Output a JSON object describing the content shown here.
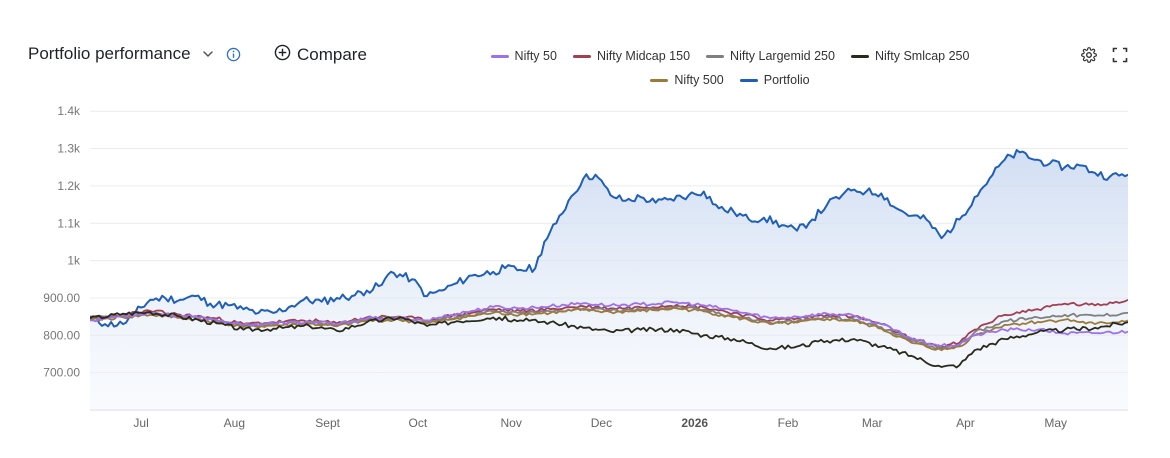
{
  "header": {
    "title": "Portfolio performance",
    "compare_label": "Compare"
  },
  "colors": {
    "nifty50": "#9b72ec",
    "midcap150": "#a04050",
    "largemid250": "#7f7f7f",
    "smlcap250": "#2a2a1a",
    "nifty500": "#9c7a3c",
    "portfolio": "#1f5fb8",
    "grid": "#ececec"
  },
  "chart_data": {
    "type": "line",
    "title": "Portfolio performance",
    "y_ticks": [
      "1.4k",
      "1.3k",
      "1.2k",
      "1.1k",
      "1k",
      "900.00",
      "800.00",
      "700.00"
    ],
    "y_tick_values": [
      1400,
      1300,
      1200,
      1100,
      1000,
      900,
      800,
      700
    ],
    "ylim": [
      600,
      1430
    ],
    "x_labels": [
      "Jul",
      "Aug",
      "Sept",
      "Oct",
      "Nov",
      "Dec",
      "2026",
      "Feb",
      "Mar",
      "Apr",
      "May"
    ],
    "x_label_bold": [
      false,
      false,
      false,
      false,
      false,
      false,
      true,
      false,
      false,
      false,
      false
    ],
    "x_range": [
      "2025-06-20",
      "2026-05-31"
    ],
    "x_label_dates": [
      "2025-07-01",
      "2025-08-01",
      "2025-09-01",
      "2025-10-01",
      "2025-11-01",
      "2025-12-01",
      "2026-01-01",
      "2026-02-01",
      "2026-03-01",
      "2026-04-01",
      "2026-05-01"
    ],
    "legend_rows": [
      [
        "Nifty 50",
        "Nifty Midcap 150",
        "Nifty Largemid 250",
        "Nifty Smlcap 250"
      ],
      [
        "Nifty 500",
        "Portfolio"
      ]
    ],
    "series": [
      {
        "name": "Portfolio",
        "key": "portfolio",
        "area": true,
        "points": [
          [
            "2025-06-20",
            850
          ],
          [
            "2025-06-25",
            830
          ],
          [
            "2025-07-01",
            830
          ],
          [
            "2025-07-05",
            860
          ],
          [
            "2025-07-10",
            895
          ],
          [
            "2025-07-15",
            900
          ],
          [
            "2025-07-20",
            895
          ],
          [
            "2025-07-25",
            905
          ],
          [
            "2025-07-30",
            885
          ],
          [
            "2025-08-05",
            880
          ],
          [
            "2025-08-10",
            870
          ],
          [
            "2025-08-15",
            860
          ],
          [
            "2025-08-20",
            860
          ],
          [
            "2025-08-25",
            875
          ],
          [
            "2025-08-30",
            895
          ],
          [
            "2025-09-05",
            890
          ],
          [
            "2025-09-10",
            900
          ],
          [
            "2025-09-15",
            905
          ],
          [
            "2025-09-20",
            920
          ],
          [
            "2025-09-25",
            935
          ],
          [
            "2025-09-28",
            970
          ],
          [
            "2025-10-05",
            950
          ],
          [
            "2025-10-10",
            905
          ],
          [
            "2025-10-15",
            920
          ],
          [
            "2025-10-20",
            940
          ],
          [
            "2025-10-25",
            960
          ],
          [
            "2025-11-01",
            970
          ],
          [
            "2025-11-05",
            980
          ],
          [
            "2025-11-10",
            975
          ],
          [
            "2025-11-15",
            980
          ],
          [
            "2025-11-18",
            1050
          ],
          [
            "2025-11-22",
            1100
          ],
          [
            "2025-11-26",
            1160
          ],
          [
            "2025-12-01",
            1220
          ],
          [
            "2025-12-05",
            1230
          ],
          [
            "2025-12-10",
            1175
          ],
          [
            "2025-12-15",
            1160
          ],
          [
            "2025-12-20",
            1170
          ],
          [
            "2025-12-25",
            1155
          ],
          [
            "2025-12-30",
            1165
          ],
          [
            "2026-01-05",
            1175
          ],
          [
            "2026-01-10",
            1185
          ],
          [
            "2026-01-15",
            1140
          ],
          [
            "2026-01-20",
            1130
          ],
          [
            "2026-01-25",
            1110
          ],
          [
            "2026-01-30",
            1115
          ],
          [
            "2026-02-05",
            1095
          ],
          [
            "2026-02-10",
            1080
          ],
          [
            "2026-02-15",
            1110
          ],
          [
            "2026-02-20",
            1150
          ],
          [
            "2026-02-25",
            1175
          ],
          [
            "2026-03-01",
            1190
          ],
          [
            "2026-03-05",
            1185
          ],
          [
            "2026-03-10",
            1180
          ],
          [
            "2026-03-15",
            1140
          ],
          [
            "2026-03-20",
            1120
          ],
          [
            "2026-03-25",
            1110
          ],
          [
            "2026-03-30",
            1060
          ],
          [
            "2026-04-05",
            1110
          ],
          [
            "2026-04-10",
            1170
          ],
          [
            "2026-04-15",
            1220
          ],
          [
            "2026-04-20",
            1270
          ],
          [
            "2026-04-25",
            1290
          ],
          [
            "2026-04-30",
            1270
          ],
          [
            "2026-05-05",
            1260
          ],
          [
            "2026-05-10",
            1250
          ],
          [
            "2026-05-15",
            1255
          ],
          [
            "2026-05-20",
            1235
          ],
          [
            "2026-05-25",
            1225
          ],
          [
            "2026-05-31",
            1230
          ]
        ]
      },
      {
        "name": "Nifty Midcap 150",
        "key": "midcap150",
        "points": [
          [
            "2025-06-20",
            845
          ],
          [
            "2025-07-01",
            855
          ],
          [
            "2025-07-10",
            865
          ],
          [
            "2025-07-20",
            855
          ],
          [
            "2025-08-01",
            845
          ],
          [
            "2025-08-10",
            830
          ],
          [
            "2025-08-20",
            835
          ],
          [
            "2025-09-01",
            840
          ],
          [
            "2025-09-10",
            832
          ],
          [
            "2025-09-20",
            848
          ],
          [
            "2025-10-01",
            850
          ],
          [
            "2025-10-10",
            840
          ],
          [
            "2025-10-20",
            855
          ],
          [
            "2025-11-01",
            870
          ],
          [
            "2025-11-10",
            865
          ],
          [
            "2025-11-20",
            870
          ],
          [
            "2025-12-01",
            878
          ],
          [
            "2025-12-10",
            872
          ],
          [
            "2025-12-20",
            875
          ],
          [
            "2026-01-01",
            882
          ],
          [
            "2026-01-10",
            875
          ],
          [
            "2026-01-20",
            860
          ],
          [
            "2026-02-01",
            840
          ],
          [
            "2026-02-10",
            845
          ],
          [
            "2026-02-20",
            855
          ],
          [
            "2026-03-01",
            850
          ],
          [
            "2026-03-10",
            830
          ],
          [
            "2026-03-20",
            790
          ],
          [
            "2026-03-30",
            770
          ],
          [
            "2026-04-05",
            780
          ],
          [
            "2026-04-10",
            815
          ],
          [
            "2026-04-20",
            855
          ],
          [
            "2026-05-01",
            870
          ],
          [
            "2026-05-10",
            885
          ],
          [
            "2026-05-20",
            880
          ],
          [
            "2026-05-31",
            895
          ]
        ]
      },
      {
        "name": "Nifty Largemid 250",
        "key": "largemid250",
        "points": [
          [
            "2025-06-20",
            842
          ],
          [
            "2025-07-01",
            850
          ],
          [
            "2025-07-10",
            858
          ],
          [
            "2025-07-20",
            850
          ],
          [
            "2025-08-01",
            840
          ],
          [
            "2025-08-10",
            826
          ],
          [
            "2025-08-20",
            830
          ],
          [
            "2025-09-01",
            835
          ],
          [
            "2025-09-10",
            828
          ],
          [
            "2025-09-20",
            843
          ],
          [
            "2025-10-01",
            845
          ],
          [
            "2025-10-10",
            836
          ],
          [
            "2025-10-20",
            850
          ],
          [
            "2025-11-01",
            864
          ],
          [
            "2025-11-10",
            860
          ],
          [
            "2025-11-20",
            864
          ],
          [
            "2025-12-01",
            872
          ],
          [
            "2025-12-10",
            866
          ],
          [
            "2025-12-20",
            869
          ],
          [
            "2026-01-01",
            876
          ],
          [
            "2026-01-10",
            868
          ],
          [
            "2026-01-20",
            852
          ],
          [
            "2026-02-01",
            834
          ],
          [
            "2026-02-10",
            838
          ],
          [
            "2026-02-20",
            848
          ],
          [
            "2026-03-01",
            842
          ],
          [
            "2026-03-10",
            822
          ],
          [
            "2026-03-20",
            784
          ],
          [
            "2026-03-30",
            764
          ],
          [
            "2026-04-05",
            774
          ],
          [
            "2026-04-10",
            808
          ],
          [
            "2026-04-20",
            838
          ],
          [
            "2026-05-01",
            848
          ],
          [
            "2026-05-10",
            855
          ],
          [
            "2026-05-20",
            852
          ],
          [
            "2026-05-31",
            860
          ]
        ]
      },
      {
        "name": "Nifty 500",
        "key": "nifty500",
        "points": [
          [
            "2025-06-20",
            840
          ],
          [
            "2025-07-01",
            848
          ],
          [
            "2025-07-10",
            855
          ],
          [
            "2025-07-20",
            847
          ],
          [
            "2025-08-01",
            836
          ],
          [
            "2025-08-10",
            822
          ],
          [
            "2025-08-20",
            826
          ],
          [
            "2025-09-01",
            831
          ],
          [
            "2025-09-10",
            824
          ],
          [
            "2025-09-20",
            839
          ],
          [
            "2025-10-01",
            841
          ],
          [
            "2025-10-10",
            832
          ],
          [
            "2025-10-20",
            846
          ],
          [
            "2025-11-01",
            860
          ],
          [
            "2025-11-10",
            856
          ],
          [
            "2025-11-20",
            860
          ],
          [
            "2025-12-01",
            868
          ],
          [
            "2025-12-10",
            862
          ],
          [
            "2025-12-20",
            865
          ],
          [
            "2026-01-01",
            872
          ],
          [
            "2026-01-10",
            864
          ],
          [
            "2026-01-20",
            848
          ],
          [
            "2026-02-01",
            830
          ],
          [
            "2026-02-10",
            834
          ],
          [
            "2026-02-20",
            844
          ],
          [
            "2026-03-01",
            838
          ],
          [
            "2026-03-10",
            818
          ],
          [
            "2026-03-20",
            780
          ],
          [
            "2026-03-30",
            760
          ],
          [
            "2026-04-05",
            770
          ],
          [
            "2026-04-10",
            800
          ],
          [
            "2026-04-20",
            828
          ],
          [
            "2026-05-01",
            836
          ],
          [
            "2026-05-10",
            842
          ],
          [
            "2026-05-20",
            830
          ],
          [
            "2026-05-31",
            840
          ]
        ]
      },
      {
        "name": "Nifty 50",
        "key": "nifty50",
        "points": [
          [
            "2025-06-20",
            840
          ],
          [
            "2025-07-01",
            852
          ],
          [
            "2025-07-10",
            860
          ],
          [
            "2025-07-20",
            852
          ],
          [
            "2025-08-01",
            842
          ],
          [
            "2025-08-10",
            828
          ],
          [
            "2025-08-20",
            832
          ],
          [
            "2025-09-01",
            836
          ],
          [
            "2025-09-10",
            830
          ],
          [
            "2025-09-20",
            845
          ],
          [
            "2025-10-01",
            846
          ],
          [
            "2025-10-10",
            840
          ],
          [
            "2025-10-20",
            858
          ],
          [
            "2025-11-01",
            876
          ],
          [
            "2025-11-10",
            872
          ],
          [
            "2025-11-20",
            878
          ],
          [
            "2025-12-01",
            886
          ],
          [
            "2025-12-10",
            880
          ],
          [
            "2025-12-20",
            883
          ],
          [
            "2026-01-01",
            888
          ],
          [
            "2026-01-10",
            880
          ],
          [
            "2026-01-20",
            866
          ],
          [
            "2026-02-01",
            846
          ],
          [
            "2026-02-10",
            850
          ],
          [
            "2026-02-20",
            858
          ],
          [
            "2026-03-01",
            852
          ],
          [
            "2026-03-10",
            830
          ],
          [
            "2026-03-20",
            792
          ],
          [
            "2026-03-30",
            772
          ],
          [
            "2026-04-05",
            776
          ],
          [
            "2026-04-10",
            800
          ],
          [
            "2026-04-20",
            815
          ],
          [
            "2026-05-01",
            815
          ],
          [
            "2026-05-10",
            805
          ],
          [
            "2026-05-20",
            806
          ],
          [
            "2026-05-31",
            810
          ]
        ]
      },
      {
        "name": "Nifty Smlcap 250",
        "key": "smlcap250",
        "points": [
          [
            "2025-06-20",
            845
          ],
          [
            "2025-07-01",
            858
          ],
          [
            "2025-07-10",
            862
          ],
          [
            "2025-07-20",
            850
          ],
          [
            "2025-08-01",
            832
          ],
          [
            "2025-08-10",
            815
          ],
          [
            "2025-08-20",
            818
          ],
          [
            "2025-09-01",
            825
          ],
          [
            "2025-09-10",
            812
          ],
          [
            "2025-09-20",
            835
          ],
          [
            "2025-10-01",
            848
          ],
          [
            "2025-10-10",
            825
          ],
          [
            "2025-10-20",
            838
          ],
          [
            "2025-11-01",
            848
          ],
          [
            "2025-11-10",
            840
          ],
          [
            "2025-11-20",
            835
          ],
          [
            "2025-12-01",
            820
          ],
          [
            "2025-12-10",
            810
          ],
          [
            "2025-12-20",
            815
          ],
          [
            "2026-01-01",
            815
          ],
          [
            "2026-01-10",
            800
          ],
          [
            "2026-01-20",
            790
          ],
          [
            "2026-02-01",
            765
          ],
          [
            "2026-02-10",
            770
          ],
          [
            "2026-02-20",
            785
          ],
          [
            "2026-03-01",
            790
          ],
          [
            "2026-03-10",
            770
          ],
          [
            "2026-03-20",
            745
          ],
          [
            "2026-03-30",
            715
          ],
          [
            "2026-04-05",
            720
          ],
          [
            "2026-04-10",
            760
          ],
          [
            "2026-04-20",
            790
          ],
          [
            "2026-05-01",
            808
          ],
          [
            "2026-05-10",
            815
          ],
          [
            "2026-05-20",
            820
          ],
          [
            "2026-05-31",
            835
          ]
        ]
      }
    ]
  }
}
